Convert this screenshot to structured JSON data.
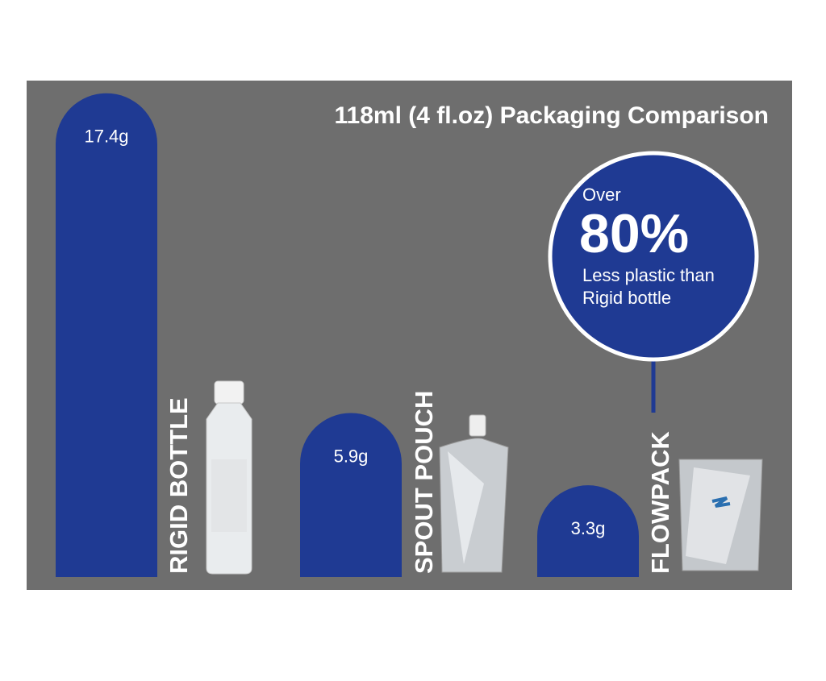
{
  "chart_data": {
    "type": "bar",
    "title": "118ml (4 fl.oz) Packaging Comparison",
    "categories": [
      "RIGID BOTTLE",
      "SPOUT POUCH",
      "FLOWPACK"
    ],
    "values": [
      17.4,
      5.9,
      3.3
    ],
    "value_labels": [
      "17.4g",
      "5.9g",
      "3.3g"
    ],
    "color": "#1f3a93",
    "callout": {
      "lead": "Over",
      "figure": "80%",
      "lines": [
        "Less plastic than",
        "Rigid bottle"
      ]
    }
  }
}
